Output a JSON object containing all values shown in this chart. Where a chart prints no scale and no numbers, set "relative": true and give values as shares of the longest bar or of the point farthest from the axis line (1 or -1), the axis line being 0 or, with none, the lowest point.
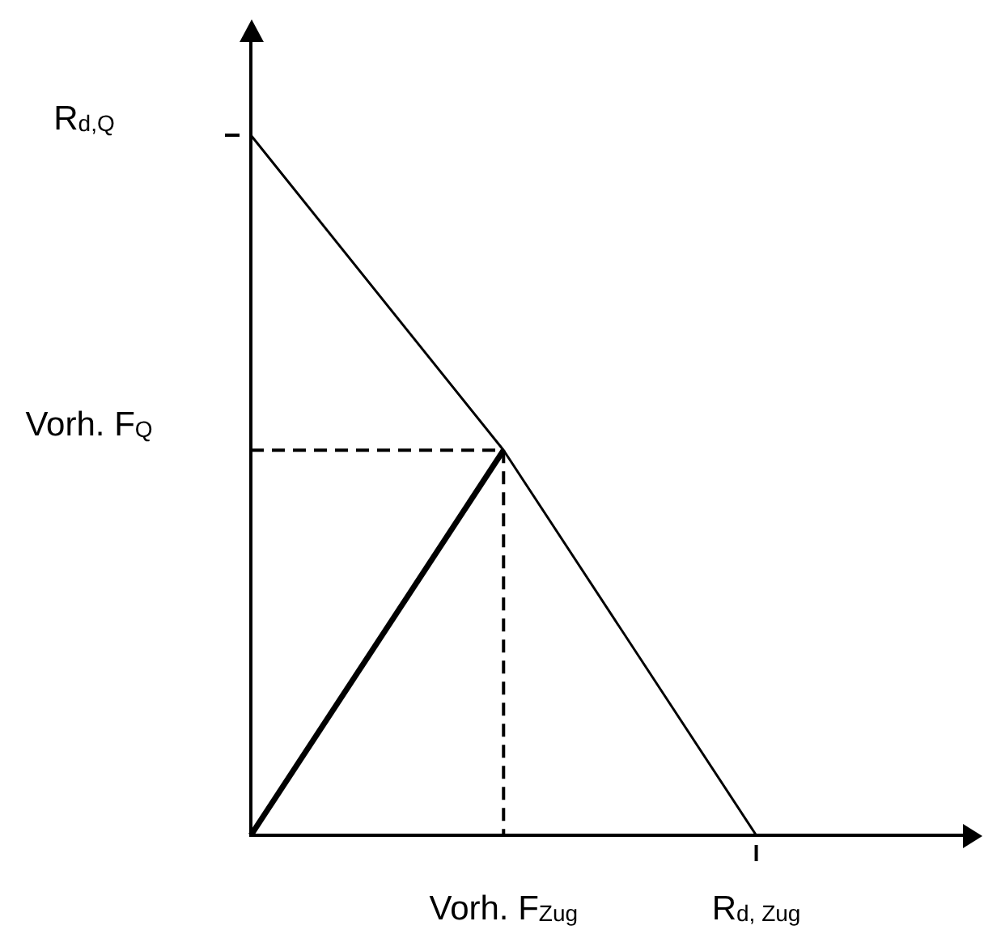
{
  "chart_data": {
    "type": "line",
    "relative": true,
    "tick_labels": "x",
    "grid": false,
    "legend": false,
    "marker": "none",
    "categories": [
      null,
      "Vorh. F$_{Zug}$",
      "R$_{d, Zug}$"
    ],
    "series": [
      {
        "values": [
          1,
          0.55,
          0
        ],
        "color": "#000000"
      },
      {
        "values": [
          0,
          0.55,
          null
        ],
        "color": "#000000"
      },
      {
        "values": [
          0.55,
          0.55,
          null
        ],
        "color": "#000000",
        "line_style": "dashed"
      },
      {
        "x": [
          "Vorh. F$_{Zug}$",
          "Vorh. F$_{Zug}$"
        ],
        "values": [
          0.55,
          0
        ],
        "color": "#000000",
        "line_style": "dashed"
      }
    ],
    "annotations": [
      "R$_{d,Q}$",
      "Vorh. F$_{Q}$"
    ]
  }
}
